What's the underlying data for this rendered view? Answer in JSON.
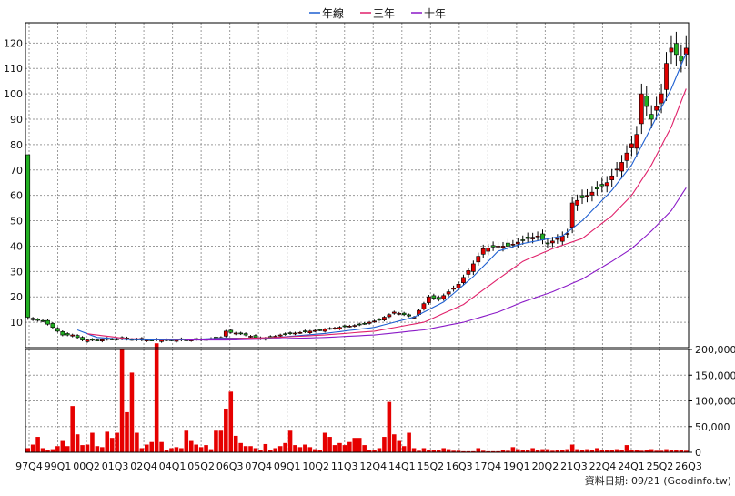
{
  "legend": [
    {
      "label": "年線",
      "color": "#1e5fd1"
    },
    {
      "label": "三年",
      "color": "#e0206a"
    },
    {
      "label": "十年",
      "color": "#8a19c7"
    }
  ],
  "footer": "資料日期: 09/21  (Goodinfo.tw)",
  "chart_data": [
    {
      "type": "candlestick",
      "title": "",
      "x_tick_labels": [
        "97Q4",
        "99Q1",
        "00Q2",
        "01Q3",
        "02Q4",
        "04Q1",
        "05Q2",
        "06Q3",
        "07Q4",
        "09Q1",
        "10Q2",
        "11Q3",
        "12Q4",
        "14Q1",
        "15Q2",
        "16Q3",
        "17Q4",
        "19Q1",
        "20Q2",
        "21Q3",
        "22Q4",
        "24Q1",
        "25Q2",
        "26Q3"
      ],
      "y_ticks": [
        10,
        20,
        30,
        40,
        50,
        60,
        70,
        80,
        90,
        100,
        110,
        120
      ],
      "ylim": [
        0,
        128
      ],
      "grid": true,
      "legend_position": "top-center",
      "close_anchors": [
        [
          0,
          11
        ],
        [
          1,
          11
        ],
        [
          3,
          10.5
        ],
        [
          5,
          8
        ],
        [
          7,
          5
        ],
        [
          9,
          5
        ],
        [
          11,
          3
        ],
        [
          14,
          3
        ],
        [
          18,
          3.5
        ],
        [
          23,
          3
        ],
        [
          27,
          3
        ],
        [
          31,
          3
        ],
        [
          35,
          3
        ],
        [
          39,
          4
        ],
        [
          40,
          6.5
        ],
        [
          41,
          6
        ],
        [
          43,
          5.5
        ],
        [
          47,
          3.5
        ],
        [
          49,
          4
        ],
        [
          51,
          5
        ],
        [
          55,
          6
        ],
        [
          59,
          7
        ],
        [
          63,
          8
        ],
        [
          67,
          9
        ],
        [
          71,
          11
        ],
        [
          74,
          14
        ],
        [
          76,
          13
        ],
        [
          78,
          12
        ],
        [
          81,
          20
        ],
        [
          83,
          19
        ],
        [
          87,
          25
        ],
        [
          90,
          33
        ],
        [
          92,
          39
        ],
        [
          95,
          40
        ],
        [
          97,
          40
        ],
        [
          101,
          43
        ],
        [
          103,
          44
        ],
        [
          105,
          41
        ],
        [
          107,
          43
        ],
        [
          109,
          45
        ],
        [
          110,
          57
        ],
        [
          113,
          60
        ],
        [
          117,
          65
        ],
        [
          120,
          73
        ],
        [
          123,
          84
        ],
        [
          124,
          100
        ],
        [
          126,
          90
        ],
        [
          128,
          100
        ],
        [
          129,
          112
        ],
        [
          130,
          118
        ],
        [
          132,
          113
        ],
        [
          133,
          118
        ]
      ],
      "highlighted_candle": {
        "index": 0,
        "open": 76,
        "close": 12,
        "high": 76,
        "low": 11
      },
      "series": [
        {
          "name": "年線",
          "color": "#1e5fd1",
          "anchors": [
            [
              10,
              7
            ],
            [
              14,
              4
            ],
            [
              20,
              3.2
            ],
            [
              30,
              3
            ],
            [
              40,
              3.8
            ],
            [
              48,
              3.6
            ],
            [
              60,
              5.6
            ],
            [
              70,
              8
            ],
            [
              78,
              12
            ],
            [
              84,
              18
            ],
            [
              90,
              28
            ],
            [
              95,
              38
            ],
            [
              100,
              41
            ],
            [
              108,
              44
            ],
            [
              112,
              50
            ],
            [
              118,
              62
            ],
            [
              122,
              72
            ],
            [
              126,
              87
            ],
            [
              130,
              102
            ],
            [
              133,
              116
            ]
          ]
        },
        {
          "name": "三年",
          "color": "#e0206a",
          "anchors": [
            [
              12,
              5.5
            ],
            [
              20,
              3.5
            ],
            [
              30,
              3.3
            ],
            [
              40,
              3.5
            ],
            [
              50,
              4
            ],
            [
              60,
              5
            ],
            [
              70,
              6.5
            ],
            [
              80,
              10
            ],
            [
              88,
              17
            ],
            [
              95,
              27
            ],
            [
              100,
              34
            ],
            [
              106,
              39
            ],
            [
              112,
              43
            ],
            [
              118,
              52
            ],
            [
              122,
              60
            ],
            [
              126,
              72
            ],
            [
              130,
              87
            ],
            [
              133,
              102
            ]
          ]
        },
        {
          "name": "十年",
          "color": "#8a19c7",
          "anchors": [
            [
              32,
              3
            ],
            [
              40,
              3
            ],
            [
              50,
              3.5
            ],
            [
              60,
              4
            ],
            [
              70,
              5
            ],
            [
              80,
              7
            ],
            [
              88,
              10
            ],
            [
              95,
              14
            ],
            [
              100,
              18
            ],
            [
              106,
              22
            ],
            [
              112,
              27
            ],
            [
              118,
              34
            ],
            [
              122,
              39
            ],
            [
              126,
              46
            ],
            [
              130,
              54
            ],
            [
              133,
              63
            ]
          ]
        }
      ]
    },
    {
      "type": "bar",
      "title": "",
      "y_tick_labels": [
        "0",
        "50,000",
        "100,000",
        "150,000",
        "200,000"
      ],
      "ylim": [
        0,
        200000
      ],
      "bar_color": "#e60000",
      "volume_spikes": [
        [
          0,
          8000
        ],
        [
          1,
          15000
        ],
        [
          2,
          30000
        ],
        [
          3,
          8000
        ],
        [
          4,
          5000
        ],
        [
          5,
          6000
        ],
        [
          6,
          12000
        ],
        [
          7,
          22000
        ],
        [
          8,
          12000
        ],
        [
          9,
          90000
        ],
        [
          10,
          35000
        ],
        [
          11,
          14000
        ],
        [
          12,
          15000
        ],
        [
          13,
          38000
        ],
        [
          14,
          12000
        ],
        [
          15,
          10000
        ],
        [
          16,
          40000
        ],
        [
          17,
          28000
        ],
        [
          18,
          38000
        ],
        [
          19,
          200000
        ],
        [
          20,
          78000
        ],
        [
          21,
          155000
        ],
        [
          22,
          38000
        ],
        [
          23,
          8000
        ],
        [
          24,
          15000
        ],
        [
          25,
          20000
        ],
        [
          26,
          212000
        ],
        [
          27,
          20000
        ],
        [
          28,
          5000
        ],
        [
          29,
          8000
        ],
        [
          30,
          10000
        ],
        [
          31,
          8000
        ],
        [
          32,
          42000
        ],
        [
          33,
          22000
        ],
        [
          34,
          15000
        ],
        [
          35,
          10000
        ],
        [
          36,
          14000
        ],
        [
          37,
          6000
        ],
        [
          38,
          42000
        ],
        [
          39,
          42000
        ],
        [
          40,
          85000
        ],
        [
          41,
          118000
        ],
        [
          42,
          32000
        ],
        [
          43,
          18000
        ],
        [
          44,
          12000
        ],
        [
          45,
          12000
        ],
        [
          46,
          8000
        ],
        [
          47,
          5000
        ],
        [
          48,
          16000
        ],
        [
          49,
          5000
        ],
        [
          50,
          8000
        ],
        [
          51,
          12000
        ],
        [
          52,
          18000
        ],
        [
          53,
          42000
        ],
        [
          54,
          14000
        ],
        [
          55,
          10000
        ],
        [
          56,
          15000
        ],
        [
          57,
          10000
        ],
        [
          58,
          6000
        ],
        [
          59,
          5000
        ],
        [
          60,
          38000
        ],
        [
          61,
          30000
        ],
        [
          62,
          14000
        ],
        [
          63,
          18000
        ],
        [
          64,
          14000
        ],
        [
          65,
          20000
        ],
        [
          66,
          28000
        ],
        [
          67,
          28000
        ],
        [
          68,
          14000
        ],
        [
          69,
          5000
        ],
        [
          70,
          5000
        ],
        [
          71,
          8000
        ],
        [
          72,
          30000
        ],
        [
          73,
          98000
        ],
        [
          74,
          35000
        ],
        [
          75,
          22000
        ],
        [
          76,
          12000
        ],
        [
          77,
          38000
        ],
        [
          78,
          8000
        ],
        [
          79,
          3000
        ],
        [
          80,
          8000
        ],
        [
          81,
          5000
        ],
        [
          82,
          5000
        ],
        [
          83,
          5000
        ],
        [
          84,
          8000
        ],
        [
          85,
          6000
        ],
        [
          86,
          3000
        ],
        [
          87,
          3000
        ],
        [
          88,
          2000
        ],
        [
          89,
          2000
        ],
        [
          90,
          2000
        ],
        [
          91,
          8000
        ],
        [
          92,
          3000
        ],
        [
          93,
          2000
        ],
        [
          94,
          2000
        ],
        [
          95,
          2000
        ],
        [
          96,
          5000
        ],
        [
          97,
          3000
        ],
        [
          98,
          10000
        ],
        [
          99,
          6000
        ],
        [
          100,
          5000
        ],
        [
          101,
          5000
        ],
        [
          102,
          8000
        ],
        [
          103,
          5000
        ],
        [
          104,
          6000
        ],
        [
          105,
          6000
        ],
        [
          106,
          3000
        ],
        [
          107,
          5000
        ],
        [
          108,
          4000
        ],
        [
          109,
          6000
        ],
        [
          110,
          15000
        ],
        [
          111,
          6000
        ],
        [
          112,
          4000
        ],
        [
          113,
          6000
        ],
        [
          114,
          5000
        ],
        [
          115,
          8000
        ],
        [
          116,
          5000
        ],
        [
          117,
          5000
        ],
        [
          118,
          4000
        ],
        [
          119,
          6000
        ],
        [
          120,
          4000
        ],
        [
          121,
          14000
        ],
        [
          122,
          5000
        ],
        [
          123,
          5000
        ],
        [
          124,
          3000
        ],
        [
          125,
          5000
        ],
        [
          126,
          6000
        ],
        [
          127,
          3000
        ],
        [
          128,
          3000
        ],
        [
          129,
          6000
        ],
        [
          130,
          5000
        ],
        [
          131,
          5000
        ],
        [
          132,
          4000
        ],
        [
          133,
          3000
        ]
      ]
    }
  ]
}
